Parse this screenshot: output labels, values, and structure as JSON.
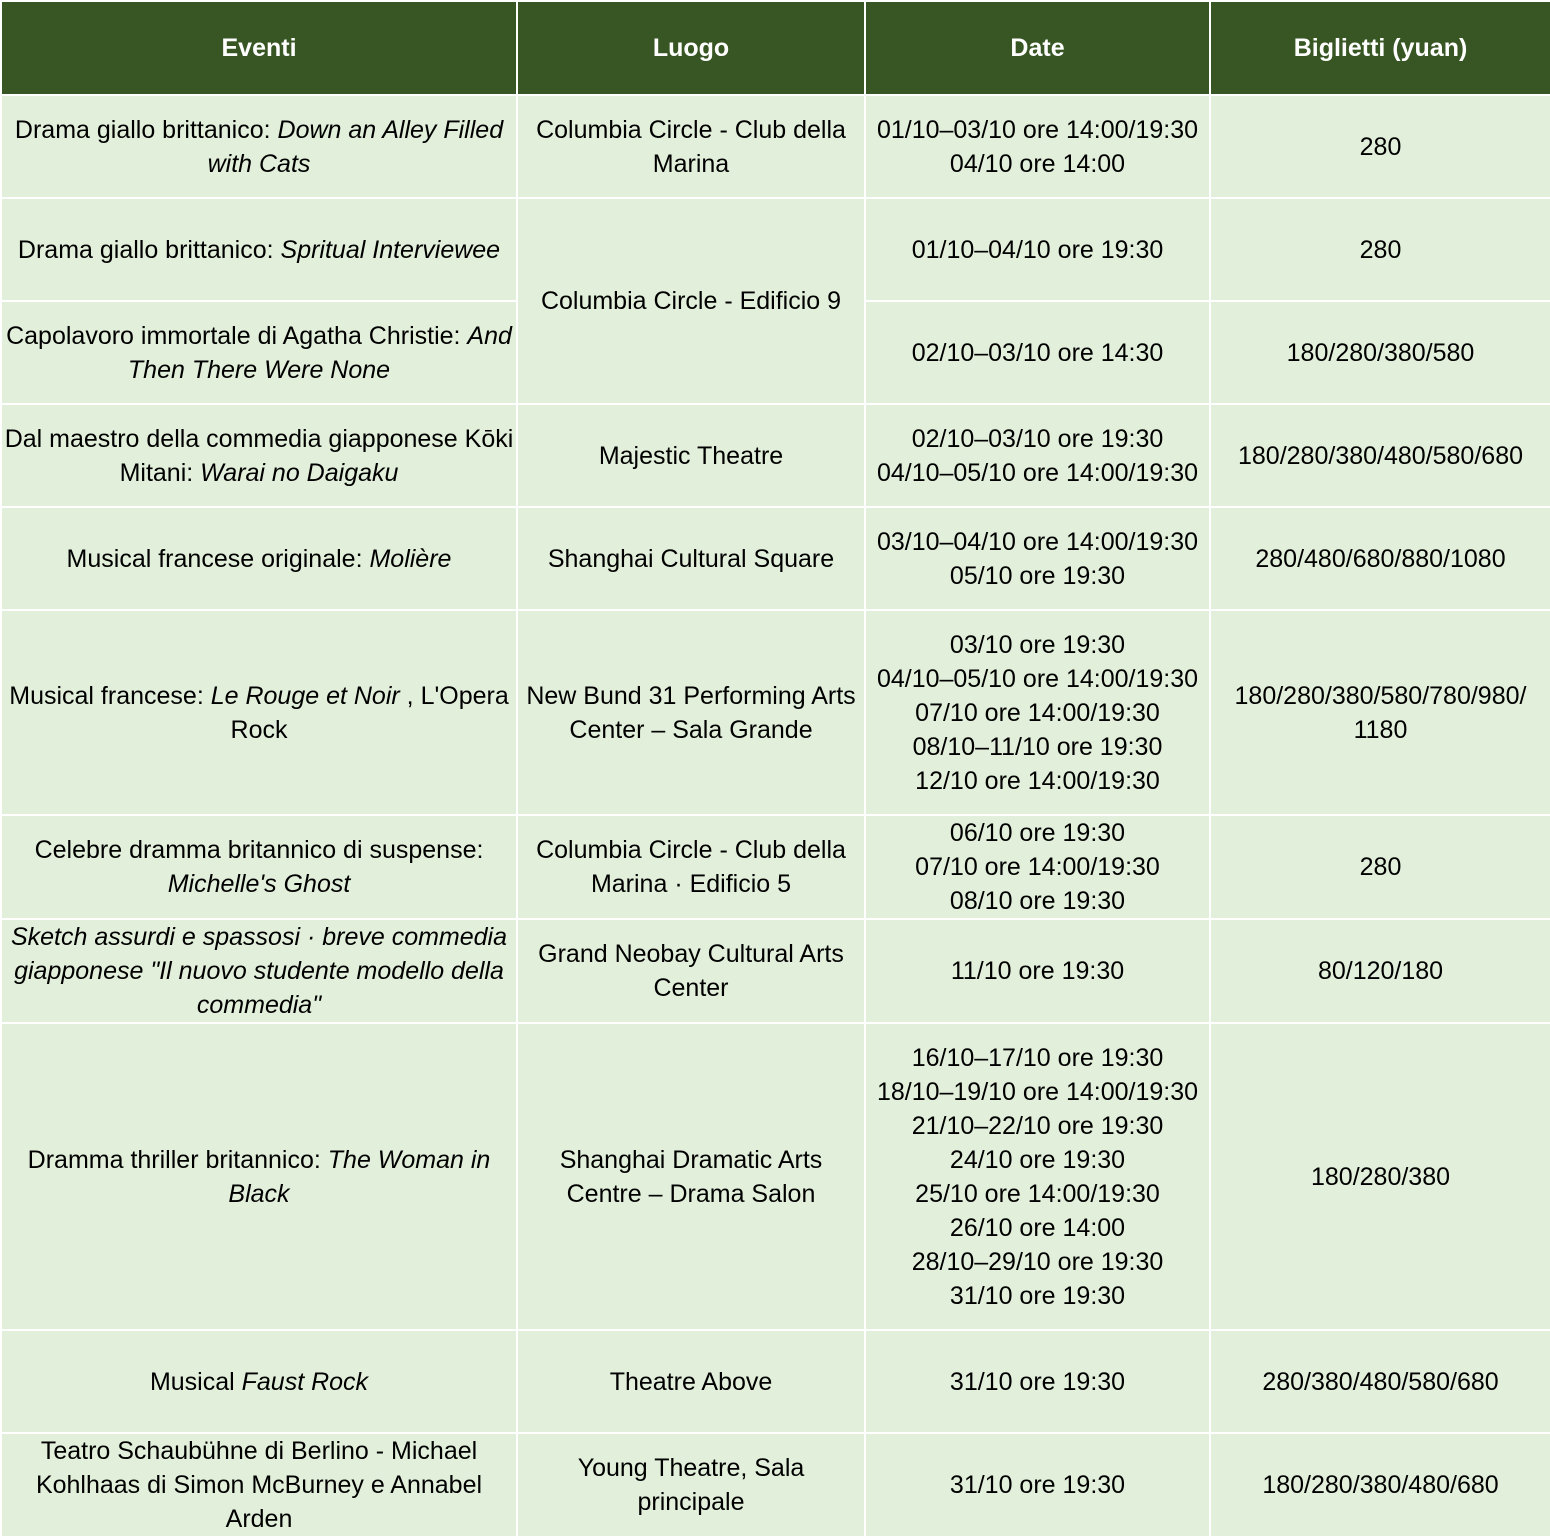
{
  "colors": {
    "header_bg": "#375623",
    "cell_bg": "#e2efda",
    "header_text": "#ffffff"
  },
  "headers": [
    "Eventi",
    "Luogo",
    "Date",
    "Biglietti (yuan)"
  ],
  "rows": [
    {
      "event": {
        "pre": "Drama giallo brittanico: ",
        "title": "Down an Alley Filled with Cats",
        "post": ""
      },
      "venue": "Columbia Circle - Club della Marina",
      "dates": [
        "01/10–03/10 ore 14:00/19:30",
        "04/10 ore 14:00"
      ],
      "price": "280"
    },
    {
      "event": {
        "pre": "Drama giallo brittanico: ",
        "title": "Spritual Interviewee",
        "post": ""
      },
      "venue": "Columbia Circle - Edificio 9",
      "venue_rows": 2,
      "dates": [
        "01/10–04/10 ore 19:30"
      ],
      "price": "280"
    },
    {
      "event": {
        "pre": "Capolavoro immortale di Agatha Christie: ",
        "title": "And Then There Were None",
        "post": ""
      },
      "dates": [
        "02/10–03/10 ore 14:30"
      ],
      "price": "180/280/380/580"
    },
    {
      "event": {
        "pre": "Dal maestro della commedia giapponese Kōki Mitani: ",
        "title": "Warai no Daigaku",
        "post": ""
      },
      "venue": "Majestic Theatre",
      "dates": [
        "02/10–03/10 ore 19:30",
        "04/10–05/10 ore 14:00/19:30"
      ],
      "price": "180/280/380/480/580/680"
    },
    {
      "event": {
        "pre": "Musical francese originale: ",
        "title": "Molière",
        "post": ""
      },
      "venue": "Shanghai Cultural Square",
      "dates": [
        "03/10–04/10 ore 14:00/19:30",
        "05/10 ore 19:30"
      ],
      "price": "280/480/680/880/1080"
    },
    {
      "event": {
        "pre": "Musical francese:  ",
        "title": "Le Rouge et Noir",
        "post": " , L'Opera Rock"
      },
      "venue": "New Bund 31 Performing Arts Center – Sala Grande",
      "dates": [
        "03/10 ore 19:30",
        "04/10–05/10 ore 14:00/19:30",
        "07/10 ore 14:00/19:30",
        "08/10–11/10 ore 19:30",
        "12/10 ore 14:00/19:30"
      ],
      "price": "180/280/380/580/780/980/ 1180"
    },
    {
      "event": {
        "pre": "Celebre dramma britannico di suspense: ",
        "title": "Michelle's  Ghost",
        "post": ""
      },
      "venue": "Columbia Circle - Club della Marina · Edificio 5",
      "dates": [
        "06/10 ore 19:30",
        "07/10 ore 14:00/19:30",
        "08/10 ore 19:30"
      ],
      "price": "280"
    },
    {
      "event": {
        "pre": "",
        "title": "Sketch assurdi e spassosi · breve commedia giapponese \"Il nuovo studente modello della commedia\"",
        "post": ""
      },
      "venue": "Grand Neobay Cultural Arts Center",
      "dates": [
        "11/10 ore 19:30"
      ],
      "price": "80/120/180"
    },
    {
      "event": {
        "pre": "Dramma thriller britannico: ",
        "title": "The Woman in Black",
        "post": ""
      },
      "venue": "Shanghai Dramatic Arts Centre – Drama Salon",
      "dates": [
        "16/10–17/10 ore 19:30",
        "18/10–19/10 ore 14:00/19:30",
        "21/10–22/10 ore 19:30",
        "24/10 ore 19:30",
        "25/10 ore 14:00/19:30",
        "26/10 ore 14:00",
        "28/10–29/10 ore 19:30",
        "31/10 ore 19:30"
      ],
      "price": "180/280/380"
    },
    {
      "event": {
        "pre": "Musical ",
        "title": "Faust Rock",
        "post": ""
      },
      "venue": "Theatre Above",
      "dates": [
        "31/10 ore 19:30"
      ],
      "price": "280/380/480/580/680"
    },
    {
      "event": {
        "pre": "Teatro Schaubühne di Berlino - Michael Kohlhaas di Simon McBurney e Annabel Arden",
        "title": "",
        "post": ""
      },
      "venue": "Young Theatre, Sala principale",
      "dates": [
        "31/10 ore 19:30"
      ],
      "price": "180/280/380/480/680"
    }
  ]
}
